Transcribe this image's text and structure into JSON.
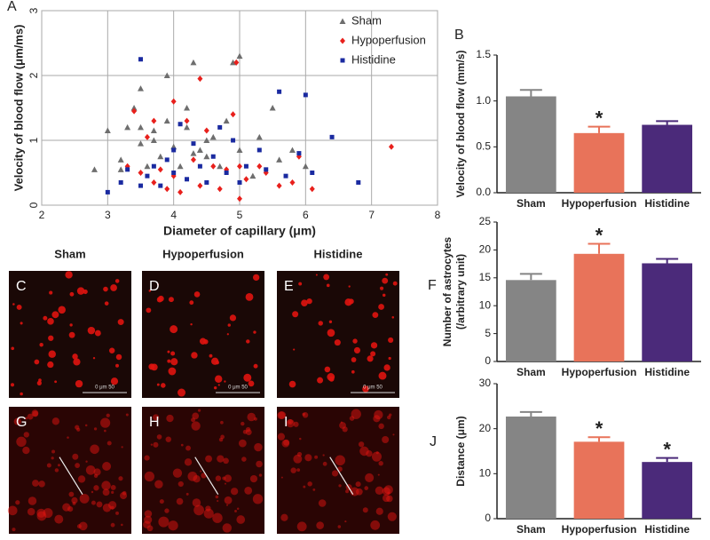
{
  "chart_data": [
    {
      "type": "scatter",
      "panel": "A",
      "xlabel": "Diameter of capillary (μm)",
      "ylabel": "Velocity of blood flow (μm/ms)",
      "xlim": [
        2,
        8
      ],
      "xticks": [
        2,
        3,
        4,
        5,
        6,
        7,
        8
      ],
      "ylim": [
        0,
        3
      ],
      "yticks": [
        0,
        1,
        2,
        3
      ],
      "grid": true,
      "legend": "upper right",
      "series": [
        {
          "name": "Sham",
          "color": "#6e6e6e",
          "marker": "triangle",
          "x": [
            2.8,
            3.0,
            3.2,
            3.2,
            3.3,
            3.4,
            3.5,
            3.5,
            3.5,
            3.6,
            3.7,
            3.7,
            3.8,
            3.9,
            3.9,
            4.0,
            4.1,
            4.2,
            4.2,
            4.3,
            4.3,
            4.4,
            4.5,
            4.5,
            4.6,
            4.7,
            4.8,
            4.9,
            5.0,
            5.0,
            5.2,
            5.3,
            5.5,
            5.6,
            5.8,
            6.0
          ],
          "values": [
            0.55,
            1.15,
            0.7,
            0.55,
            1.2,
            1.5,
            1.2,
            0.95,
            1.8,
            0.6,
            1.0,
            1.15,
            0.75,
            2.0,
            1.3,
            0.9,
            0.6,
            1.5,
            1.2,
            2.2,
            0.8,
            0.85,
            1.0,
            0.75,
            1.05,
            0.6,
            1.3,
            2.2,
            2.3,
            0.85,
            0.45,
            1.05,
            1.5,
            0.7,
            0.85,
            0.6
          ]
        },
        {
          "name": "Hypoperfusion",
          "color": "#e8201c",
          "marker": "diamond",
          "x": [
            3.3,
            3.4,
            3.5,
            3.6,
            3.7,
            3.7,
            3.8,
            3.9,
            4.0,
            4.0,
            4.1,
            4.2,
            4.3,
            4.4,
            4.4,
            4.5,
            4.6,
            4.7,
            4.8,
            4.9,
            4.95,
            5.0,
            5.0,
            5.1,
            5.3,
            5.4,
            5.6,
            5.8,
            5.9,
            6.1,
            7.3
          ],
          "values": [
            0.6,
            1.45,
            0.5,
            1.05,
            1.3,
            0.35,
            0.55,
            0.25,
            1.6,
            0.45,
            0.2,
            1.3,
            0.7,
            1.95,
            0.3,
            1.15,
            0.6,
            0.25,
            0.55,
            1.4,
            2.2,
            0.1,
            0.6,
            0.4,
            0.6,
            0.5,
            0.3,
            0.35,
            0.75,
            0.25,
            0.9
          ]
        },
        {
          "name": "Histidine",
          "color": "#1a2aa0",
          "marker": "square",
          "x": [
            3.0,
            3.2,
            3.3,
            3.5,
            3.5,
            3.6,
            3.7,
            3.8,
            3.9,
            4.0,
            4.0,
            4.1,
            4.2,
            4.3,
            4.4,
            4.5,
            4.6,
            4.7,
            4.8,
            4.9,
            5.0,
            5.1,
            5.3,
            5.4,
            5.6,
            5.7,
            5.9,
            6.0,
            6.1,
            6.4,
            6.8
          ],
          "values": [
            0.2,
            0.35,
            0.55,
            2.25,
            0.3,
            0.45,
            0.6,
            0.3,
            0.7,
            0.5,
            0.85,
            1.25,
            0.4,
            0.95,
            0.6,
            0.35,
            0.75,
            1.2,
            0.5,
            1.0,
            0.35,
            0.6,
            0.85,
            0.55,
            1.75,
            0.45,
            0.8,
            1.7,
            0.5,
            1.05,
            0.35
          ]
        }
      ]
    },
    {
      "type": "bar",
      "panel": "B",
      "ylabel": [
        "Velocity of blood flow (mm/s)"
      ],
      "categories": [
        "Sham",
        "Hypoperfusion",
        "Histidine"
      ],
      "values": [
        1.05,
        0.65,
        0.74
      ],
      "errors": [
        0.07,
        0.07,
        0.04
      ],
      "annotations": [
        null,
        "*",
        null
      ],
      "colors": [
        "#858585",
        "#e8735a",
        "#4b2a7a"
      ],
      "ylim": [
        0,
        1.5
      ],
      "yticks": [
        {
          "value": 0,
          "label": "0.0"
        },
        0.5,
        {
          "value": 1,
          "label": "1.0"
        },
        1.5
      ]
    },
    {
      "type": "bar",
      "panel": "F",
      "ylabel": [
        "Number of astrocytes",
        "(/arbitrary unit)"
      ],
      "categories": [
        "Sham",
        "Hypoperfusion",
        "Histidine"
      ],
      "values": [
        14.6,
        19.3,
        17.6
      ],
      "errors": [
        1.1,
        1.8,
        0.8
      ],
      "annotations": [
        null,
        "*",
        null
      ],
      "colors": [
        "#858585",
        "#e8735a",
        "#4b2a7a"
      ],
      "ylim": [
        0,
        25
      ],
      "yticks": [
        0,
        5,
        10,
        15,
        20,
        25
      ]
    },
    {
      "type": "bar",
      "panel": "J",
      "ylabel": [
        "Distance (μm)"
      ],
      "categories": [
        "Sham",
        "Hypoperfusion",
        "Histidine"
      ],
      "values": [
        22.7,
        17.1,
        12.6
      ],
      "errors": [
        1.0,
        1.0,
        0.9
      ],
      "annotations": [
        null,
        "*",
        "*"
      ],
      "colors": [
        "#858585",
        "#e8735a",
        "#4b2a7a"
      ],
      "ylim": [
        0,
        30
      ],
      "yticks": [
        0,
        10,
        20,
        30
      ]
    }
  ],
  "images": {
    "headings": [
      "Sham",
      "Hypoperfusion",
      "Histidine"
    ],
    "panels": [
      "C",
      "D",
      "E",
      "G",
      "H",
      "I"
    ],
    "scale_label": "0 μm 50"
  }
}
